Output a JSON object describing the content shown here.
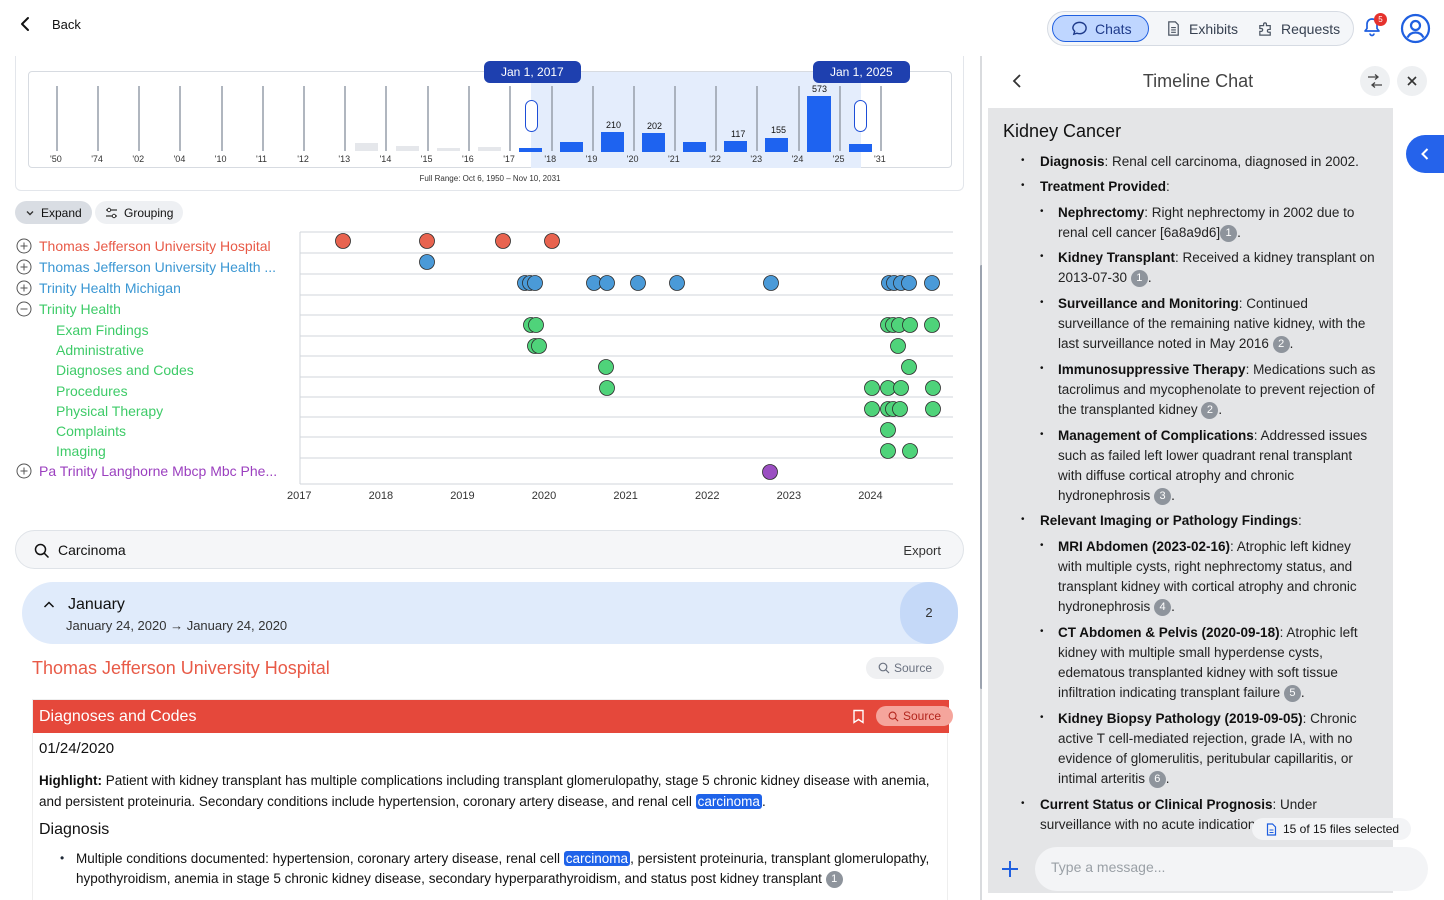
{
  "topbar": {
    "back_label": "Back",
    "nav": [
      {
        "label": "Chats",
        "icon": "chat-bubble-icon",
        "active": true
      },
      {
        "label": "Exhibits",
        "icon": "document-icon",
        "active": false
      },
      {
        "label": "Requests",
        "icon": "puzzle-icon",
        "active": false
      }
    ],
    "notification_count": "5",
    "accent_color": "#1f5fe0"
  },
  "range_selector": {
    "start_label": "Jan 1, 2017",
    "end_label": "Jan 1, 2025",
    "full_range": "Full Range: Oct 6, 1950 – Nov 10, 2031",
    "bar_labels": [
      "573",
      "210",
      "202",
      "117",
      "155"
    ],
    "ticks": [
      "'50",
      "'74",
      "'02",
      "'04",
      "'10",
      "'11",
      "'12",
      "'13",
      "'14",
      "'15",
      "'16",
      "'17",
      "'18",
      "'19",
      "'20",
      "'21",
      "'22",
      "'23",
      "'24",
      "'25",
      "'31"
    ]
  },
  "toolbar": {
    "expand_label": "Expand",
    "grouping_label": "Grouping"
  },
  "groups": [
    {
      "label": "Thomas Jefferson University Hospital",
      "color": "#e85a47",
      "state": "collapsed"
    },
    {
      "label": "Thomas Jefferson University Health ...",
      "color": "#3b97d3",
      "state": "collapsed"
    },
    {
      "label": "Trinity Health Michigan",
      "color": "#3b97d3",
      "state": "collapsed"
    },
    {
      "label": "Trinity Health",
      "color": "#3ecb68",
      "state": "expanded"
    },
    {
      "label": "Pa Trinity Langhorne Mbcp Mbc Phe...",
      "color": "#9b3fbf",
      "state": "collapsed"
    }
  ],
  "subgroups": [
    "Exam Findings",
    "Administrative",
    "Diagnoses and Codes",
    "Procedures",
    "Physical Therapy",
    "Complaints",
    "Imaging"
  ],
  "timeline_years": [
    "2017",
    "2018",
    "2019",
    "2020",
    "2021",
    "2022",
    "2023",
    "2024"
  ],
  "search": {
    "query": "Carcinoma",
    "export_label": "Export"
  },
  "month_group": {
    "title": "January",
    "dates": "January 24, 2020 → January 24, 2020",
    "count": "2"
  },
  "record": {
    "hospital": "Thomas Jefferson University Hospital",
    "source_label": "Source",
    "category": "Diagnoses and Codes",
    "date": "01/24/2020",
    "highlight_label": "Highlight:",
    "highlight_text": "Patient with kidney transplant has multiple complications including transplant glomerulopathy, stage 5 chronic kidney disease with anemia, and persistent proteinuria. Secondary conditions include hypertension, coronary artery disease, and renal cell",
    "highlight_term": "carcinoma",
    "diagnosis_heading": "Diagnosis",
    "diagnosis_pre": "Multiple conditions documented: hypertension, coronary artery disease, renal cell",
    "diagnosis_term": "carcinoma",
    "diagnosis_post": ", persistent proteinuria, transplant glomerulopathy, hypothyroidism, anemia in stage 5 chronic kidney disease, secondary hyperparathyroidism, and status post kidney transplant",
    "diagnosis_cite": "1"
  },
  "chat": {
    "title": "Timeline Chat",
    "heading": "Kidney Cancer",
    "diagnosis_label": "Diagnosis",
    "diagnosis_text": ": Renal cell carcinoma, diagnosed in 2002.",
    "treatment_label": "Treatment Provided",
    "nephrectomy_label": "Nephrectomy",
    "nephrectomy_text": ": Right nephrectomy in 2002 due to",
    "nephrectomy_text2": "renal cell cancer [6a8a9d6]",
    "transplant_label": "Kidney Transplant",
    "transplant_text": ": Received a kidney transplant on",
    "transplant_text2": "2013-07-30",
    "surveillance_label": "Surveillance and Monitoring",
    "surveillance_text": ": Continued",
    "surveillance_text2": "surveillance of the remaining native kidney, with the",
    "surveillance_text3": "last surveillance noted in May 2016",
    "immuno_label": "Immunosuppressive Therapy",
    "immuno_text": ": Medications such as",
    "immuno_text2": "tacrolimus and mycophenolate to prevent rejection of",
    "immuno_text3": "the transplanted kidney",
    "complications_label": "Management of Complications",
    "complications_text": ": Addressed issues",
    "complications_text2": "such as failed left lower quadrant renal transplant",
    "complications_text3": "with diffuse cortical atrophy and chronic",
    "complications_text4": "hydronephrosis",
    "imaging_label": "Relevant Imaging or Pathology Findings",
    "mri_label": "MRI Abdomen (2023-02-16)",
    "mri_text": ": Atrophic left kidney",
    "mri_text2": "with multiple cysts, right nephrectomy status, and",
    "mri_text3": "transplant kidney with cortical atrophy and chronic",
    "mri_text4": "hydronephrosis",
    "ct_label": "CT Abdomen & Pelvis (2020-09-18)",
    "ct_text": ": Atrophic left",
    "ct_text2": "kidney with multiple small hyperdense cysts,",
    "ct_text3": "edematous transplanted kidney with soft tissue",
    "ct_text4": "infiltration indicating transplant failure",
    "biopsy_label": "Kidney Biopsy Pathology (2019-09-05)",
    "biopsy_text": ": Chronic",
    "biopsy_text2": "active T cell-mediated rejection, grade IA, with no",
    "biopsy_text3": "evidence of glomerulitis, peritubular capillaritis, or",
    "biopsy_text4": "intimal arteritis",
    "status_label": "Current Status or Clinical Prognosis",
    "status_text": ": Under",
    "status_text2": "surveillance with no acute indications",
    "cites": [
      "1",
      "1",
      "2",
      "2",
      "3",
      "4",
      "5",
      "6"
    ],
    "files_selected": "15 of 15 files selected",
    "message_placeholder": "Type a message..."
  }
}
